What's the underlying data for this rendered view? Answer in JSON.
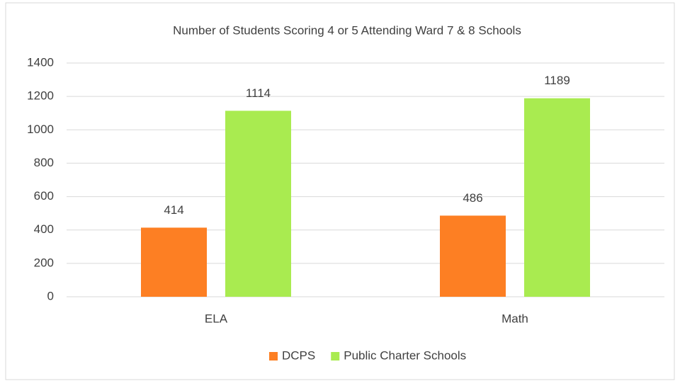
{
  "chart_data": {
    "type": "bar",
    "title": "Number of Students Scoring 4 or 5 Attending Ward 7 & 8 Schools",
    "categories": [
      "ELA",
      "Math"
    ],
    "series": [
      {
        "name": "DCPS",
        "color": "#fd7f23",
        "values": [
          414,
          486
        ]
      },
      {
        "name": "Public Charter Schools",
        "color": "#a9eb50",
        "values": [
          1114,
          1189
        ]
      }
    ],
    "ylim": [
      0,
      1400
    ],
    "yticks": [
      0,
      200,
      400,
      600,
      800,
      1000,
      1200,
      1400
    ],
    "grid": true,
    "legend": "bottom"
  }
}
